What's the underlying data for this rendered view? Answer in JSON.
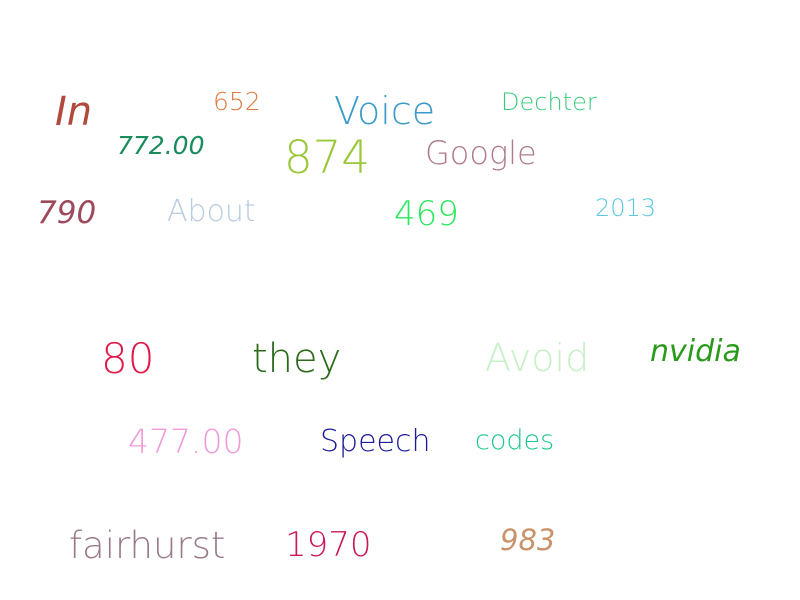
{
  "words": [
    {
      "id": "in",
      "text": "In",
      "color": "#b04a3c",
      "italic": true
    },
    {
      "id": "652",
      "text": "652",
      "color": "#e07a3c",
      "italic": false
    },
    {
      "id": "voice",
      "text": "Voice",
      "color": "#3a9ac8",
      "italic": false
    },
    {
      "id": "dechter",
      "text": "Dechter",
      "color": "#3acb7a",
      "italic": false
    },
    {
      "id": "772",
      "text": "772.00",
      "color": "#1a8c5c",
      "italic": true
    },
    {
      "id": "874",
      "text": "874",
      "color": "#9ac83a",
      "italic": false
    },
    {
      "id": "google",
      "text": "Google",
      "color": "#b07a8a",
      "italic": false
    },
    {
      "id": "790",
      "text": "790",
      "color": "#9c4a5c",
      "italic": true
    },
    {
      "id": "about",
      "text": "About",
      "color": "#b8cce0",
      "italic": false
    },
    {
      "id": "469",
      "text": "469",
      "color": "#2ae85c",
      "italic": false
    },
    {
      "id": "2013",
      "text": "2013",
      "color": "#5cc8e0",
      "italic": false
    },
    {
      "id": "80",
      "text": "80",
      "color": "#e01a4a",
      "italic": false
    },
    {
      "id": "they",
      "text": "they",
      "color": "#2a6a1a",
      "italic": false
    },
    {
      "id": "avoid",
      "text": "Avoid",
      "color": "#c8f0c8",
      "italic": false
    },
    {
      "id": "nvidia",
      "text": "nvidia",
      "color": "#2a9a1a",
      "italic": true
    },
    {
      "id": "477",
      "text": "477.00",
      "color": "#f09ad8",
      "italic": false
    },
    {
      "id": "speech",
      "text": "Speech",
      "color": "#1a1a9a",
      "italic": false
    },
    {
      "id": "codes",
      "text": "codes",
      "color": "#1ac88a",
      "italic": false
    },
    {
      "id": "fairhurst",
      "text": "fairhurst",
      "color": "#9a7a8a",
      "italic": false
    },
    {
      "id": "1970",
      "text": "1970",
      "color": "#c81a5a",
      "italic": false
    },
    {
      "id": "983",
      "text": "983",
      "color": "#c8926a",
      "italic": true
    }
  ]
}
